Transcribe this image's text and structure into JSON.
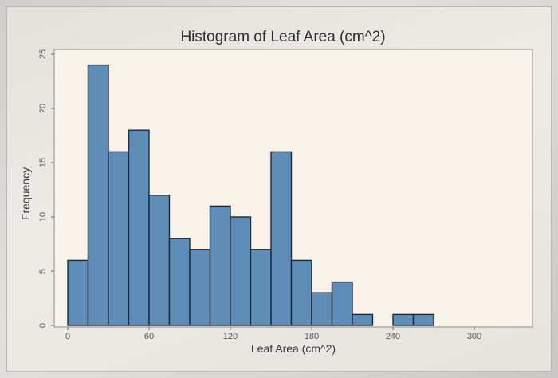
{
  "chart_data": {
    "type": "bar",
    "title": "Histogram of Leaf Area (cm^2)",
    "xlabel": "Leaf Area (cm^2)",
    "ylabel": "Frequency",
    "bin_width": 15,
    "bins_start": [
      0,
      15,
      30,
      45,
      60,
      75,
      90,
      105,
      120,
      135,
      150,
      165,
      180,
      195,
      210,
      225,
      240,
      255
    ],
    "values": [
      6,
      24,
      16,
      18,
      12,
      8,
      7,
      11,
      10,
      7,
      16,
      6,
      3,
      4,
      1,
      0,
      1,
      1
    ],
    "xlim": [
      0,
      255
    ],
    "ylim": [
      0,
      25
    ],
    "x_ticks": [
      "0",
      "60",
      "120",
      "180",
      "240",
      "300"
    ],
    "x_tick_values": [
      0,
      60,
      120,
      180,
      240,
      300
    ],
    "y_ticks": [
      "0",
      "5",
      "10",
      "15",
      "20",
      "25"
    ],
    "y_tick_values": [
      0,
      5,
      10,
      15,
      20,
      25
    ],
    "grid": false,
    "bar_color": "#5e8db8",
    "bar_edge_color": "#1f2a36",
    "plot_background": "#f7f3ea"
  }
}
